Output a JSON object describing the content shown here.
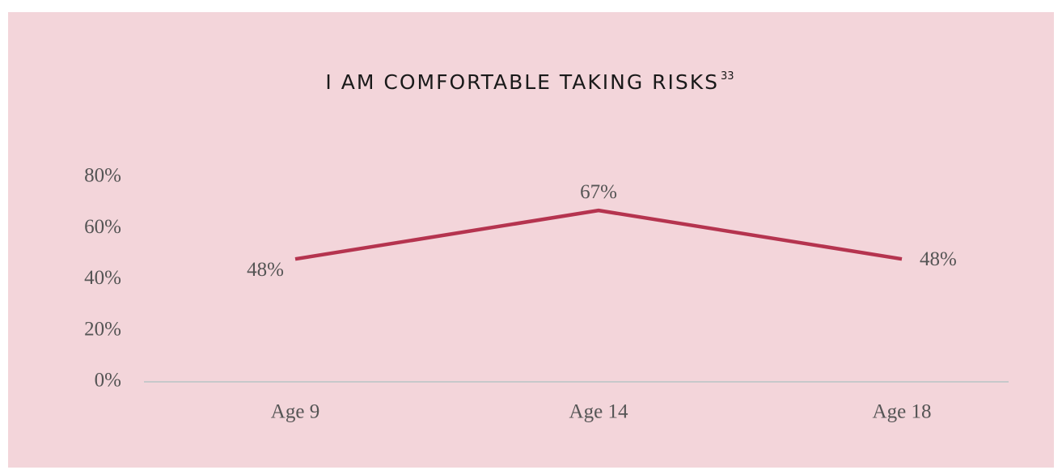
{
  "chart_data": {
    "type": "line",
    "title": "I AM COMFORTABLE TAKING RISKS",
    "title_superscript": "33",
    "categories": [
      "Age 9",
      "Age 14",
      "Age 18"
    ],
    "values": [
      48,
      67,
      48
    ],
    "value_labels": [
      "48%",
      "67%",
      "48%"
    ],
    "color": "#b5344f",
    "ylim": [
      0,
      80
    ],
    "yticks": [
      {
        "value": 0,
        "label": "0%"
      },
      {
        "value": 20,
        "label": "20%"
      },
      {
        "value": 40,
        "label": "40%"
      },
      {
        "value": 60,
        "label": "60%"
      },
      {
        "value": 80,
        "label": "80%"
      }
    ],
    "grid": false
  }
}
